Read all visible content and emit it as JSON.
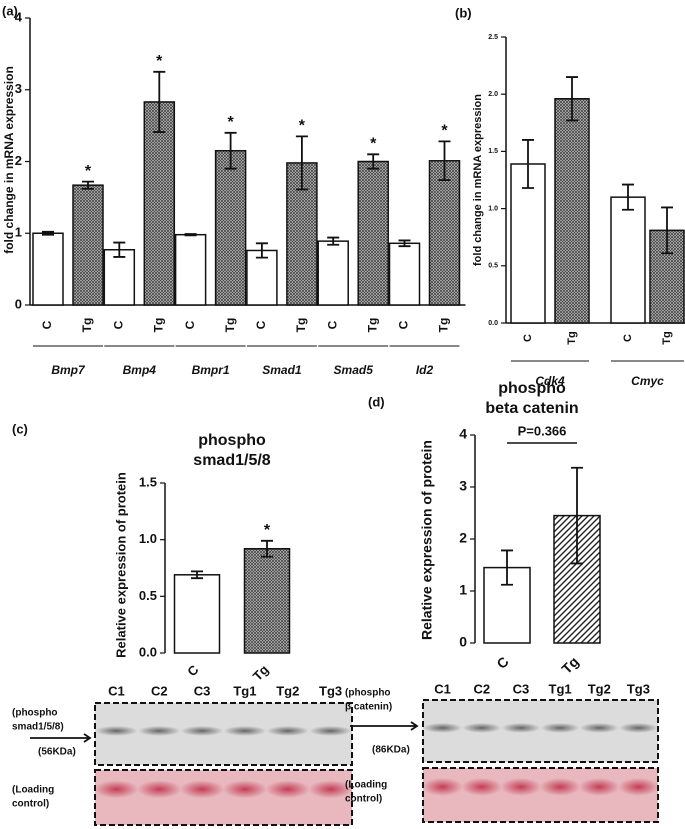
{
  "chart_data": [
    {
      "type": "bar",
      "panel_label": "(a)",
      "y_label": "fold change in mRNA expression",
      "categories": [
        "C",
        "Tg",
        "C",
        "Tg",
        "C",
        "Tg",
        "C",
        "Tg",
        "C",
        "Tg",
        "C",
        "Tg"
      ],
      "groups": [
        "Bmp7",
        "Bmp4",
        "Bmpr1",
        "Smad1",
        "Smad5",
        "Id2"
      ],
      "values": [
        1.0,
        1.67,
        0.77,
        2.83,
        0.98,
        2.15,
        0.76,
        1.98,
        0.89,
        2.0,
        0.86,
        2.01
      ],
      "errors": [
        0.02,
        0.05,
        0.1,
        0.42,
        0.01,
        0.25,
        0.1,
        0.37,
        0.05,
        0.1,
        0.04,
        0.27
      ],
      "markers": [
        null,
        "*",
        null,
        "*",
        null,
        "*",
        null,
        "*",
        null,
        "*",
        null,
        "*"
      ],
      "styles": [
        "open",
        "crosshatch",
        "open",
        "crosshatch",
        "open",
        "crosshatch",
        "open",
        "crosshatch",
        "open",
        "crosshatch",
        "open",
        "crosshatch"
      ],
      "ylim": [
        0,
        4
      ],
      "yticks": [
        0,
        1,
        2,
        3,
        4
      ]
    },
    {
      "type": "bar",
      "panel_label": "(b)",
      "y_label": "fold change in mRNA expression",
      "categories": [
        "C",
        "Tg",
        "C",
        "Tg"
      ],
      "groups": [
        "Cdk4",
        "Cmyc"
      ],
      "values": [
        1.39,
        1.96,
        1.1,
        0.81
      ],
      "errors": [
        0.21,
        0.19,
        0.11,
        0.2
      ],
      "styles": [
        "open",
        "crosshatch",
        "open",
        "crosshatch"
      ],
      "ylim": [
        0,
        2.5
      ],
      "yticks": [
        {
          "value": 0,
          "label": "0.0"
        },
        0.5,
        {
          "value": 1,
          "label": "1.0"
        },
        1.5,
        {
          "value": 2,
          "label": "2.0"
        },
        2.5
      ]
    },
    {
      "type": "bar",
      "panel_label": "(c)",
      "title": [
        "phospho",
        "smad1/5/8"
      ],
      "y_label": "Relative expression of protein",
      "categories": [
        "C",
        "Tg"
      ],
      "values": [
        0.69,
        0.92
      ],
      "errors": [
        0.03,
        0.07
      ],
      "markers": [
        null,
        "*"
      ],
      "styles": [
        "open",
        "crosshatch"
      ],
      "ylim": [
        0,
        1.5
      ],
      "yticks": [
        {
          "value": 0,
          "label": "0.0"
        },
        0.5,
        {
          "value": 1,
          "label": "1.0"
        },
        1.5
      ],
      "blot": {
        "lanes": [
          "C1",
          "C2",
          "C3",
          "Tg1",
          "Tg2",
          "Tg3"
        ],
        "band_label": [
          "(phospho",
          "smad1/5/8)"
        ],
        "size": "(56KDa)",
        "loading_label": [
          "(Loading",
          "control)"
        ]
      }
    },
    {
      "type": "bar",
      "panel_label": "(d)",
      "title": [
        "phospho",
        "beta catenin"
      ],
      "y_label": "Relative expression of protein",
      "categories": [
        "C",
        "Tg"
      ],
      "values": [
        1.45,
        2.45
      ],
      "errors": [
        0.33,
        0.92
      ],
      "annotation": "P=0.366",
      "styles": [
        "open",
        "diagonal"
      ],
      "ylim": [
        0,
        4
      ],
      "yticks": [
        0,
        1,
        2,
        3,
        4
      ],
      "blot": {
        "lanes": [
          "C1",
          "C2",
          "C3",
          "Tg1",
          "Tg2",
          "Tg3"
        ],
        "band_label": [
          "(phospho",
          "β catenin)"
        ],
        "size": "(86KDa)",
        "loading_label": [
          "(Loading",
          "control)"
        ]
      }
    }
  ]
}
